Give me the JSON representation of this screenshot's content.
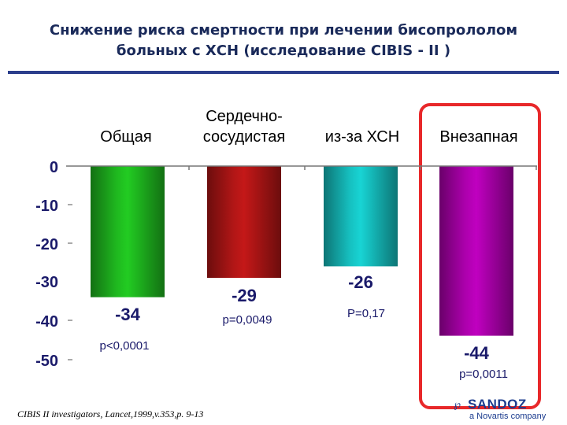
{
  "title_line1": "Снижение риска смертности при лечении бисопрололом",
  "title_line2": "больных  с  ХСН (исследование  CIBIS - II )",
  "chart_data": {
    "type": "bar",
    "categories": [
      "Общая",
      "Сердечно-\nсосудистая",
      "из-за ХСН",
      "Внезапная"
    ],
    "values": [
      -34,
      -29,
      -26,
      -44
    ],
    "value_labels": [
      "-34",
      "-29",
      "-26",
      "-44"
    ],
    "p_values": [
      "p<0,0001",
      "p=0,0049",
      "P=0,17",
      "p=0,0011"
    ],
    "yticks": [
      "0",
      "-10",
      "-20",
      "-30",
      "-40",
      "-50"
    ],
    "ylim": [
      -50,
      0
    ],
    "colors": [
      "#22cc22",
      "#c41818",
      "#18d4d4",
      "#c000c0"
    ],
    "highlight_category": "Внезапная",
    "highlight_color": "#e8282a",
    "grid": false
  },
  "footer": "CIBIS II investigators,  Lancet,1999,v.353,p. 9-13",
  "brand": {
    "logo": "℘",
    "name": "SANDOZ",
    "sub": "a Novartis company"
  }
}
